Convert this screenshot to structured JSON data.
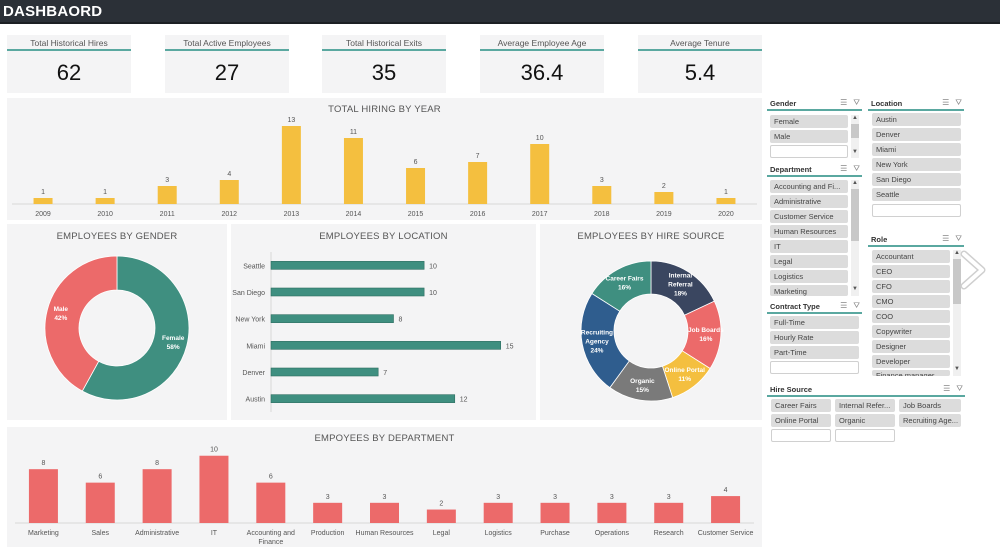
{
  "header": {
    "title": "DASHBAORD"
  },
  "kpis": [
    {
      "label": "Total Historical Hires",
      "value": "62"
    },
    {
      "label": "Total Active Employees",
      "value": "27"
    },
    {
      "label": "Total Historical Exits",
      "value": "35"
    },
    {
      "label": "Average Employee Age",
      "value": "36.4"
    },
    {
      "label": "Average Tenure",
      "value": "5.4"
    }
  ],
  "colors": {
    "yellow": "#f4bf3f",
    "teal": "#3f8f80",
    "red": "#ec6a6a",
    "navy": "#3a4660",
    "blue": "#2f5d8e",
    "gray": "#7a7a7a",
    "accent_line": "#5aa8a0"
  },
  "chart_data": [
    {
      "type": "bar",
      "title": "TOTAL HIRING BY YEAR",
      "categories": [
        "2009",
        "2010",
        "2011",
        "2012",
        "2013",
        "2014",
        "2015",
        "2016",
        "2017",
        "2018",
        "2019",
        "2020"
      ],
      "values": [
        1,
        1,
        3,
        4,
        13,
        11,
        6,
        7,
        10,
        3,
        2,
        1
      ],
      "xlabel": "",
      "ylabel": "",
      "ylim": [
        0,
        14
      ]
    },
    {
      "type": "pie",
      "title": "EMPLOYEES BY GENDER",
      "categories": [
        "Female",
        "Male"
      ],
      "values": [
        58,
        42
      ],
      "labels": [
        "58%",
        "42%"
      ]
    },
    {
      "type": "bar",
      "orientation": "horizontal",
      "title": "EMPLOYEES BY LOCATION",
      "categories": [
        "Seattle",
        "San Diego",
        "New York",
        "Miami",
        "Denver",
        "Austin"
      ],
      "values": [
        10,
        10,
        8,
        15,
        7,
        12
      ],
      "xlim": [
        0,
        16
      ]
    },
    {
      "type": "pie",
      "title": "EMPLOYEES BY HIRE SOURCE",
      "categories": [
        "Internal Referral",
        "Job Boards",
        "Online Portal",
        "Organic",
        "Recruiting Agency",
        "Career Fairs"
      ],
      "values": [
        18,
        16,
        11,
        15,
        24,
        16
      ],
      "labels": [
        "18%",
        "16%",
        "11%",
        "15%",
        "24%",
        "16%"
      ]
    },
    {
      "type": "bar",
      "title": "EMPOYEES BY DEPARTMENT",
      "categories": [
        "Marketing",
        "Sales",
        "Administrative",
        "IT",
        "Accounting and Finance",
        "Production",
        "Human Resources",
        "Legal",
        "Logistics",
        "Purchase",
        "Operations",
        "Research",
        "Customer Service"
      ],
      "values": [
        8,
        6,
        8,
        10,
        6,
        3,
        3,
        2,
        3,
        3,
        3,
        3,
        4
      ],
      "ylim": [
        0,
        11
      ]
    }
  ],
  "slicers": {
    "gender": {
      "title": "Gender",
      "items": [
        "Female",
        "Male"
      ]
    },
    "location": {
      "title": "Location",
      "items": [
        "Austin",
        "Denver",
        "Miami",
        "New York",
        "San Diego",
        "Seattle"
      ]
    },
    "department": {
      "title": "Department",
      "items": [
        "Accounting and Fi...",
        "Administrative",
        "Customer Service",
        "Human Resources",
        "IT",
        "Legal",
        "Logistics",
        "Marketing"
      ]
    },
    "role": {
      "title": "Role",
      "items": [
        "Accountant",
        "CEO",
        "CFO",
        "CMO",
        "COO",
        "Copywriter",
        "Designer",
        "Developer",
        "Finance manager"
      ]
    },
    "contract": {
      "title": "Contract Type",
      "items": [
        "Full-Time",
        "Hourly Rate",
        "Part-Time"
      ]
    },
    "hire_source": {
      "title": "Hire Source",
      "items": [
        "Career Fairs",
        "Internal Refer...",
        "Job Boards",
        "Online Portal",
        "Organic",
        "Recruiting Age..."
      ]
    }
  },
  "icons": {
    "multi_select": "multi-select-icon",
    "clear_filter": "clear-filter-icon",
    "next": "chevron-right-icon"
  }
}
